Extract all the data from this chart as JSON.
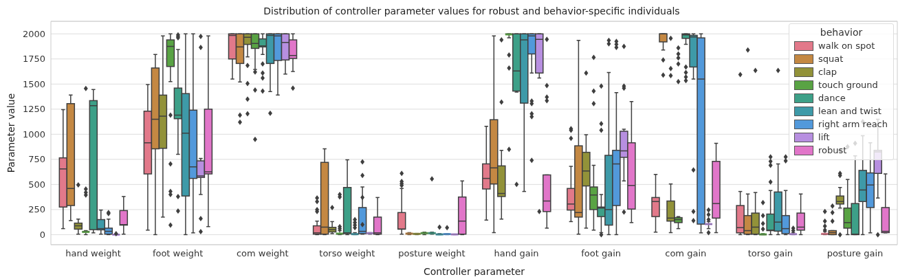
{
  "chart_data": {
    "type": "box",
    "title": "Distribution of controller parameter values for robust and behavior-specific individuals",
    "xlabel": "Controller parameter",
    "ylabel": "Parameter value",
    "legend_title": "behavior",
    "legend": "top right",
    "grid": "y",
    "ylim": [
      -100,
      2125
    ],
    "yticks": [
      0,
      250,
      500,
      750,
      1000,
      1250,
      1500,
      1750,
      2000
    ],
    "categories": [
      "hand weight",
      "foot weight",
      "com weight",
      "torso weight",
      "posture weight",
      "hand gain",
      "foot gain",
      "com gain",
      "torso gain",
      "posture gain"
    ],
    "series": [
      {
        "name": "walk on spot",
        "color": "#e2798a",
        "boxes": [
          {
            "low": 60,
            "q1": 275,
            "median": 655,
            "q3": 765,
            "high": 1245
          },
          {
            "low": 45,
            "q1": 605,
            "median": 915,
            "q3": 1230,
            "high": 1495
          },
          {
            "low": 1550,
            "q1": 1750,
            "median": 1985,
            "q3": 2000,
            "high": 2000
          },
          {
            "low": 0,
            "q1": 5,
            "median": 18,
            "q3": 88,
            "high": 135,
            "outliers": [
              365,
              330,
              250,
              230
            ]
          },
          {
            "low": 5,
            "q1": 55,
            "median": 55,
            "q3": 220,
            "high": 460,
            "outliers": [
              610,
              530,
              510,
              490
            ]
          },
          {
            "low": 145,
            "q1": 455,
            "median": 560,
            "q3": 705,
            "high": 1080
          },
          {
            "low": 130,
            "q1": 245,
            "median": 305,
            "q3": 460,
            "high": 680,
            "outliers": [
              1055,
              1040,
              960
            ]
          },
          {
            "low": 25,
            "q1": 180,
            "median": 330,
            "q3": 370,
            "high": 600
          },
          {
            "low": 0,
            "q1": 18,
            "median": 70,
            "q3": 290,
            "high": 430,
            "outliers": [
              1595
            ]
          },
          {
            "low": 0,
            "q1": 0,
            "median": 5,
            "q3": 15,
            "high": 30,
            "outliers": [
              230,
              135,
              85,
              45
            ]
          }
        ]
      },
      {
        "name": "squat",
        "color": "#c48843",
        "boxes": [
          {
            "low": 140,
            "q1": 290,
            "median": 460,
            "q3": 1305,
            "high": 1390
          },
          {
            "low": 0,
            "q1": 855,
            "median": 1150,
            "q3": 1660,
            "high": 1795
          },
          {
            "low": 1520,
            "q1": 1705,
            "median": 1870,
            "q3": 2000,
            "high": 2000,
            "outliers": [
              1190,
              1120
            ]
          },
          {
            "low": 0,
            "q1": 5,
            "median": 75,
            "q3": 720,
            "high": 855
          },
          {
            "low": 0,
            "q1": 5,
            "median": 10,
            "q3": 15,
            "high": 20
          },
          {
            "low": 20,
            "q1": 505,
            "median": 665,
            "q3": 1145,
            "high": 1980
          },
          {
            "low": 5,
            "q1": 175,
            "median": 220,
            "q3": 885,
            "high": 1935
          },
          {
            "low": 1840,
            "q1": 1920,
            "median": 2000,
            "q3": 2000,
            "high": 2000,
            "outliers": [
              1740,
              1590
            ]
          },
          {
            "low": 0,
            "q1": 5,
            "median": 40,
            "q3": 190,
            "high": 405,
            "outliers": [
              1840
            ]
          },
          {
            "low": 0,
            "q1": 0,
            "median": 20,
            "q3": 40,
            "high": 40,
            "outliers": [
              285,
              220,
              135
            ]
          }
        ]
      },
      {
        "name": "clap",
        "color": "#929239",
        "boxes": [
          {
            "low": 5,
            "q1": 55,
            "median": 88,
            "q3": 115,
            "high": 155,
            "outliers": [
              495
            ]
          },
          {
            "low": 175,
            "q1": 860,
            "median": 1180,
            "q3": 1390,
            "high": 1980
          },
          {
            "low": 1770,
            "q1": 1895,
            "median": 1965,
            "q3": 2000,
            "high": 2000,
            "outliers": [
              1685,
              1505,
              1350,
              1205
            ]
          },
          {
            "low": 10,
            "q1": 27,
            "median": 50,
            "q3": 73,
            "high": 130,
            "outliers": [
              270
            ]
          },
          {
            "low": 0,
            "q1": 5,
            "median": 8,
            "q3": 10,
            "high": 12
          },
          {
            "low": 155,
            "q1": 380,
            "median": 410,
            "q3": 685,
            "high": 840,
            "outliers": [
              1940,
              1320
            ]
          },
          {
            "low": 65,
            "q1": 485,
            "median": 635,
            "q3": 820,
            "high": 995,
            "outliers": [
              1610
            ]
          },
          {
            "low": 20,
            "q1": 135,
            "median": 165,
            "q3": 335,
            "high": 505,
            "outliers": [
              1955,
              1655,
              1585
            ]
          },
          {
            "low": 0,
            "q1": 5,
            "median": 75,
            "q3": 215,
            "high": 420,
            "outliers": [
              1635
            ]
          },
          {
            "low": 265,
            "q1": 305,
            "median": 330,
            "q3": 385,
            "high": 470,
            "outliers": [
              840,
              610,
              590,
              0
            ]
          }
        ]
      },
      {
        "name": "touch ground",
        "color": "#59a344",
        "boxes": [
          {
            "low": 0,
            "q1": 20,
            "median": 30,
            "q3": 35,
            "high": 40,
            "outliers": [
              1455,
              455,
              420,
              395
            ]
          },
          {
            "low": 1525,
            "q1": 1675,
            "median": 1875,
            "q3": 1940,
            "high": 2000,
            "outliers": [
              1190,
              705,
              430,
              400,
              95
            ]
          },
          {
            "low": 1645,
            "q1": 1855,
            "median": 1905,
            "q3": 2000,
            "high": 2000,
            "outliers": [
              1620,
              1440,
              950
            ]
          },
          {
            "low": 0,
            "q1": 0,
            "median": 5,
            "q3": 20,
            "high": 40,
            "outliers": [
              400,
              375,
              80,
              60
            ]
          },
          {
            "low": 0,
            "q1": 10,
            "median": 15,
            "q3": 20,
            "high": 25
          },
          {
            "low": 1960,
            "q1": 1990,
            "median": 2000,
            "q3": 2000,
            "high": 2000,
            "outliers": [
              1790,
              1660,
              850
            ]
          },
          {
            "low": 45,
            "q1": 250,
            "median": 395,
            "q3": 475,
            "high": 690,
            "outliers": [
              1765,
              1430,
              1305
            ]
          },
          {
            "low": 60,
            "q1": 120,
            "median": 150,
            "q3": 170,
            "high": 180,
            "outliers": [
              1860,
              1800,
              1760,
              1700,
              1525
            ]
          },
          {
            "low": 0,
            "q1": 0,
            "median": 0,
            "q3": 5,
            "high": 10,
            "outliers": [
              320,
              190,
              110,
              55
            ]
          },
          {
            "low": 0,
            "q1": 65,
            "median": 120,
            "q3": 265,
            "high": 550,
            "outliers": [
              875
            ]
          }
        ]
      },
      {
        "name": "dance",
        "color": "#3da088",
        "boxes": [
          {
            "low": 18,
            "q1": 50,
            "median": 1285,
            "q3": 1335,
            "high": 1445
          },
          {
            "low": 800,
            "q1": 1155,
            "median": 1190,
            "q3": 1460,
            "high": 1845,
            "outliers": [
              1990,
              1975,
              1960,
              380,
              235
            ]
          },
          {
            "low": 1795,
            "q1": 1870,
            "median": 1880,
            "q3": 1950,
            "high": 2000,
            "outliers": [
              1700,
              1610,
              1560,
              1430
            ]
          },
          {
            "low": 0,
            "q1": 10,
            "median": 18,
            "q3": 470,
            "high": 745
          },
          {
            "low": 5,
            "q1": 10,
            "median": 15,
            "q3": 20,
            "high": 25,
            "outliers": [
              555
            ]
          },
          {
            "low": 1420,
            "q1": 1430,
            "median": 1630,
            "q3": 2000,
            "high": 2000,
            "outliers": [
              500
            ]
          },
          {
            "low": 20,
            "q1": 180,
            "median": 265,
            "q3": 275,
            "high": 400,
            "outliers": [
              1480,
              1105,
              1040,
              0
            ]
          },
          {
            "low": 1895,
            "q1": 1955,
            "median": 1990,
            "q3": 2000,
            "high": 2000,
            "outliers": [
              1670,
              1615,
              1570,
              1535
            ]
          },
          {
            "low": 0,
            "q1": 40,
            "median": 45,
            "q3": 205,
            "high": 440,
            "outliers": [
              775,
              730,
              690,
              525
            ]
          },
          {
            "low": 0,
            "q1": 0,
            "median": 5,
            "q3": 310,
            "high": 785,
            "outliers": [
              910
            ]
          }
        ]
      },
      {
        "name": "lean and twist",
        "color": "#3e9aa8",
        "boxes": [
          {
            "low": 5,
            "q1": 48,
            "median": 60,
            "q3": 150,
            "high": 245
          },
          {
            "low": 0,
            "q1": 385,
            "median": 1010,
            "q3": 1405,
            "high": 2000
          },
          {
            "low": 1425,
            "q1": 1705,
            "median": 1985,
            "q3": 2000,
            "high": 2000,
            "outliers": [
              1210
            ]
          },
          {
            "low": 0,
            "q1": 0,
            "median": 5,
            "q3": 10,
            "high": 20,
            "outliers": [
              150,
              120,
              95,
              70
            ]
          },
          {
            "low": 0,
            "q1": 0,
            "median": 3,
            "q3": 5,
            "high": 10,
            "outliers": [
              75
            ]
          },
          {
            "low": 430,
            "q1": 1310,
            "median": 1940,
            "q3": 2000,
            "high": 2000
          },
          {
            "low": 0,
            "q1": 95,
            "median": 250,
            "q3": 790,
            "high": 1615,
            "outliers": [
              1935,
              1900
            ]
          },
          {
            "low": 1550,
            "q1": 1670,
            "median": 1970,
            "q3": 1985,
            "high": 2000,
            "outliers": [
              645,
              230,
              140
            ]
          },
          {
            "low": 0,
            "q1": 35,
            "median": 125,
            "q3": 425,
            "high": 705,
            "outliers": [
              1635
            ]
          },
          {
            "low": 0,
            "q1": 330,
            "median": 445,
            "q3": 640,
            "high": 985,
            "outliers": [
              1125
            ]
          }
        ]
      },
      {
        "name": "right arm reach",
        "color": "#5299db",
        "boxes": [
          {
            "low": 0,
            "q1": 5,
            "median": 33,
            "q3": 65,
            "high": 155,
            "outliers": [
              220,
              210
            ]
          },
          {
            "low": 18,
            "q1": 560,
            "median": 675,
            "q3": 1240,
            "high": 2000
          },
          {
            "low": 1390,
            "q1": 1735,
            "median": 1980,
            "q3": 2000,
            "high": 2000
          },
          {
            "low": 5,
            "q1": 10,
            "median": 33,
            "q3": 270,
            "high": 475,
            "outliers": [
              725,
              590,
              370,
              100
            ]
          },
          {
            "low": 0,
            "q1": 3,
            "median": 5,
            "q3": 8,
            "high": 10,
            "outliers": [
              70
            ]
          },
          {
            "low": 1610,
            "q1": 1800,
            "median": 1980,
            "q3": 2000,
            "high": 2000,
            "outliers": [
              1330,
              1305,
              1205,
              1175,
              740
            ]
          },
          {
            "low": 0,
            "q1": 290,
            "median": 705,
            "q3": 840,
            "high": 1415,
            "outliers": [
              1925,
              1895,
              1865
            ]
          },
          {
            "low": 18,
            "q1": 105,
            "median": 1550,
            "q3": 1960,
            "high": 2000
          },
          {
            "low": 0,
            "q1": 10,
            "median": 60,
            "q3": 190,
            "high": 440,
            "outliers": [
              775,
              735
            ]
          },
          {
            "low": 18,
            "q1": 270,
            "median": 495,
            "q3": 615,
            "high": 915
          }
        ]
      },
      {
        "name": "lift",
        "color": "#b78fe0",
        "boxes": [
          {
            "low": 0,
            "q1": 0,
            "median": 0,
            "q3": 0,
            "high": 0,
            "outliers": [
              10
            ]
          },
          {
            "low": 400,
            "q1": 570,
            "median": 585,
            "q3": 735,
            "high": 760,
            "outliers": [
              1975,
              1865,
              160,
              30
            ]
          },
          {
            "low": 1600,
            "q1": 1740,
            "median": 1915,
            "q3": 2000,
            "high": 2000
          },
          {
            "low": 5,
            "q1": 12,
            "median": 15,
            "q3": 18,
            "high": 20
          },
          {
            "low": 0,
            "q1": 0,
            "median": 3,
            "q3": 5,
            "high": 5
          },
          {
            "low": 1560,
            "q1": 1610,
            "median": 1945,
            "q3": 2000,
            "high": 2000,
            "outliers": [
              230
            ]
          },
          {
            "low": 535,
            "q1": 770,
            "median": 835,
            "q3": 1030,
            "high": 1050,
            "outliers": [
              1875,
              1480,
              1460,
              225
            ]
          },
          {
            "low": 60,
            "q1": 100,
            "median": 105,
            "q3": 110,
            "high": 130,
            "outliers": [
              245,
              200,
              150,
              20
            ]
          },
          {
            "low": 0,
            "q1": 0,
            "median": 5,
            "q3": 10,
            "high": 20,
            "outliers": [
              65,
              40
            ]
          },
          {
            "low": 365,
            "q1": 610,
            "median": 825,
            "q3": 840,
            "high": 1150,
            "outliers": [
              0
            ]
          }
        ]
      },
      {
        "name": "robust",
        "color": "#e176c9",
        "boxes": [
          {
            "low": 5,
            "q1": 95,
            "median": 100,
            "q3": 240,
            "high": 380
          },
          {
            "low": 80,
            "q1": 605,
            "median": 625,
            "q3": 1250,
            "high": 1980
          },
          {
            "low": 1625,
            "q1": 1755,
            "median": 1785,
            "q3": 1940,
            "high": 2000,
            "outliers": [
              1460
            ]
          },
          {
            "low": 0,
            "q1": 5,
            "median": 18,
            "q3": 175,
            "high": 370
          },
          {
            "low": 0,
            "q1": 5,
            "median": 135,
            "q3": 375,
            "high": 535
          },
          {
            "low": 65,
            "q1": 230,
            "median": 335,
            "q3": 595,
            "high": 595,
            "outliers": [
              1945,
              1485,
              1370,
              1335
            ]
          },
          {
            "low": 120,
            "q1": 255,
            "median": 490,
            "q3": 915,
            "high": 1325
          },
          {
            "low": 20,
            "q1": 165,
            "median": 310,
            "q3": 730,
            "high": 910
          },
          {
            "low": 0,
            "q1": 45,
            "median": 75,
            "q3": 215,
            "high": 405
          },
          {
            "low": 18,
            "q1": 20,
            "median": 33,
            "q3": 270,
            "high": 605
          }
        ]
      }
    ]
  }
}
